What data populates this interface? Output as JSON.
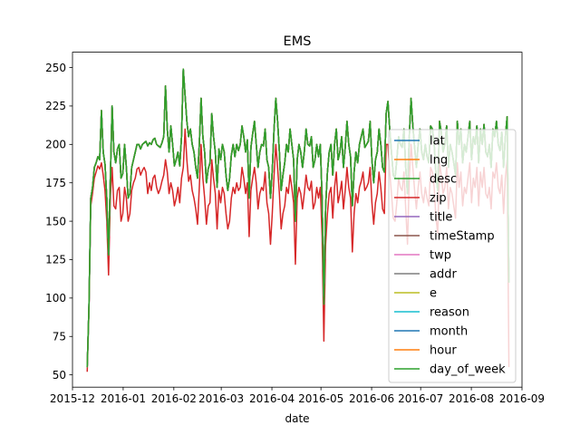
{
  "chart_data": {
    "type": "line",
    "title": "EMS",
    "xlabel": "date",
    "ylabel": "",
    "x_start": "2015-12-10",
    "x_end": "2016-08-24",
    "xlim": [
      "2015-12-01",
      "2016-09-01"
    ],
    "ylim": [
      42,
      260
    ],
    "x_ticks": [
      "2015-12",
      "2016-01",
      "2016-02",
      "2016-03",
      "2016-04",
      "2016-05",
      "2016-06",
      "2016-07",
      "2016-08",
      "2016-09"
    ],
    "y_ticks": [
      50,
      75,
      100,
      125,
      150,
      175,
      200,
      225,
      250
    ],
    "legend_position": "lower-right",
    "grid": false,
    "series": [
      {
        "name": "lat",
        "color": "#1f77b4"
      },
      {
        "name": "lng",
        "color": "#ff7f0e"
      },
      {
        "name": "desc",
        "color": "#2ca02c"
      },
      {
        "name": "zip",
        "color": "#d62728"
      },
      {
        "name": "title",
        "color": "#9467bd"
      },
      {
        "name": "timeStamp",
        "color": "#8c564b"
      },
      {
        "name": "twp",
        "color": "#e377c2"
      },
      {
        "name": "addr",
        "color": "#7f7f7f"
      },
      {
        "name": "e",
        "color": "#bcbd22"
      },
      {
        "name": "reason",
        "color": "#17becf"
      },
      {
        "name": "month",
        "color": "#1f77b4"
      },
      {
        "name": "hour",
        "color": "#ff7f0e"
      },
      {
        "name": "day_of_week",
        "color": "#2ca02c"
      }
    ],
    "count_values": [
      55,
      95,
      165,
      172,
      185,
      188,
      192,
      190,
      222,
      195,
      187,
      165,
      128,
      178,
      225,
      195,
      188,
      197,
      200,
      178,
      181,
      200,
      185,
      165,
      168,
      185,
      190,
      195,
      200,
      200,
      197,
      200,
      201,
      202,
      199,
      201,
      200,
      203,
      204,
      200,
      199,
      198,
      201,
      205,
      238,
      210,
      195,
      212,
      200,
      186,
      190,
      195,
      186,
      205,
      249,
      232,
      215,
      205,
      210,
      200,
      195,
      185,
      178,
      200,
      230,
      205,
      195,
      175,
      184,
      188,
      220,
      205,
      195,
      172,
      197,
      190,
      200,
      195,
      180,
      170,
      178,
      193,
      200,
      192,
      200,
      196,
      200,
      212,
      205,
      195,
      203,
      165,
      198,
      207,
      215,
      200,
      185,
      195,
      200,
      199,
      210,
      190,
      185,
      165,
      183,
      210,
      230,
      215,
      195,
      170,
      180,
      188,
      200,
      195,
      210,
      200,
      190,
      150,
      190,
      200,
      195,
      185,
      195,
      210,
      200,
      199,
      205,
      185,
      190,
      200,
      192,
      200,
      165,
      96,
      160,
      182,
      195,
      200,
      180,
      200,
      210,
      190,
      195,
      205,
      185,
      198,
      215,
      200,
      192,
      160,
      182,
      195,
      188,
      200,
      205,
      210,
      198,
      200,
      202,
      215,
      190,
      175,
      190,
      195,
      210,
      200,
      185,
      182,
      220,
      228,
      210,
      195,
      180,
      178,
      190,
      205,
      200,
      198,
      210,
      185,
      168,
      205,
      230,
      212,
      198,
      185,
      200,
      210,
      195,
      190,
      200,
      192,
      188,
      212,
      210,
      200,
      180,
      170,
      215,
      208,
      195,
      200,
      212,
      185,
      200,
      195,
      188,
      180,
      215,
      200,
      210,
      188,
      200,
      195,
      205,
      215,
      190,
      205,
      200,
      212,
      188,
      210,
      200,
      213,
      195,
      192,
      200,
      185,
      210,
      205,
      215,
      200,
      196,
      208,
      185,
      205,
      218,
      110
    ],
    "zip_values": [
      52,
      92,
      160,
      168,
      178,
      182,
      186,
      184,
      188,
      180,
      170,
      150,
      115,
      165,
      185,
      160,
      158,
      170,
      172,
      150,
      155,
      172,
      165,
      150,
      155,
      170,
      175,
      178,
      184,
      185,
      180,
      183,
      185,
      182,
      168,
      175,
      170,
      178,
      180,
      172,
      168,
      171,
      176,
      180,
      190,
      182,
      168,
      175,
      170,
      160,
      165,
      172,
      162,
      178,
      185,
      210,
      190,
      176,
      180,
      170,
      165,
      158,
      148,
      172,
      200,
      178,
      165,
      148,
      160,
      162,
      190,
      178,
      168,
      145,
      170,
      162,
      172,
      168,
      155,
      145,
      150,
      165,
      172,
      168,
      175,
      170,
      172,
      185,
      178,
      168,
      175,
      140,
      170,
      178,
      185,
      175,
      158,
      168,
      172,
      170,
      182,
      162,
      155,
      135,
      155,
      180,
      200,
      185,
      168,
      145,
      155,
      160,
      172,
      168,
      180,
      172,
      162,
      122,
      165,
      172,
      168,
      158,
      168,
      180,
      172,
      170,
      176,
      158,
      162,
      172,
      165,
      172,
      140,
      72,
      135,
      155,
      168,
      172,
      152,
      172,
      182,
      162,
      168,
      176,
      158,
      170,
      185,
      172,
      165,
      130,
      155,
      168,
      162,
      172,
      176,
      182,
      170,
      172,
      175,
      185,
      162,
      148,
      162,
      168,
      182,
      172,
      158,
      155,
      200,
      200,
      182,
      168,
      152,
      150,
      162,
      178,
      172,
      170,
      182,
      158,
      135,
      178,
      200,
      185,
      170,
      158,
      172,
      182,
      168,
      162,
      172,
      165,
      160,
      185,
      182,
      172,
      152,
      142,
      188,
      180,
      168,
      172,
      185,
      158,
      172,
      168,
      160,
      152,
      188,
      172,
      182,
      160,
      172,
      168,
      178,
      188,
      162,
      178,
      172,
      185,
      160,
      182,
      172,
      185,
      168,
      165,
      172,
      158,
      182,
      178,
      188,
      172,
      168,
      180,
      155,
      178,
      190,
      55
    ]
  }
}
